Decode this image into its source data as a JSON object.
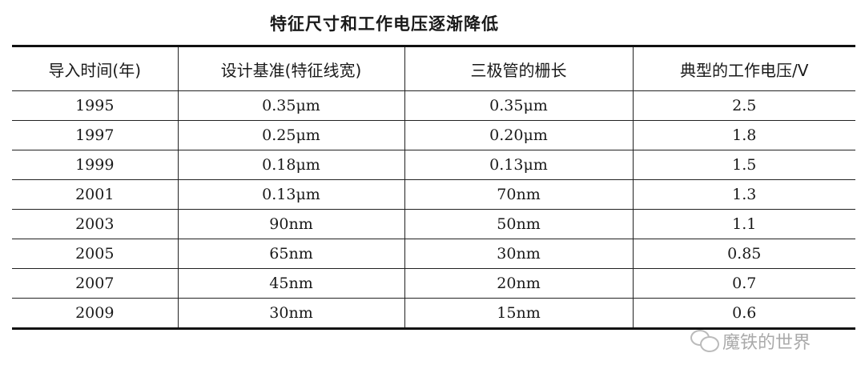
{
  "title": "特征尺寸和工作电压逐渐降低",
  "table": {
    "headers": [
      "导入时间(年)",
      "设计基准(特征线宽)",
      "三极管的栅长",
      "典型的工作电压/V"
    ],
    "rows": [
      [
        "1995",
        "0.35μm",
        "0.35μm",
        "2.5"
      ],
      [
        "1997",
        "0.25μm",
        "0.20μm",
        "1.8"
      ],
      [
        "1999",
        "0.18μm",
        "0.13μm",
        "1.5"
      ],
      [
        "2001",
        "0.13μm",
        "70nm",
        "1.3"
      ],
      [
        "2003",
        "90nm",
        "50nm",
        "1.1"
      ],
      [
        "2005",
        "65nm",
        "30nm",
        "0.85"
      ],
      [
        "2007",
        "45nm",
        "20nm",
        "0.7"
      ],
      [
        "2009",
        "30nm",
        "15nm",
        "0.6"
      ]
    ]
  },
  "watermark": {
    "icon": "wechat-icon",
    "text": "魔铁的世界"
  }
}
